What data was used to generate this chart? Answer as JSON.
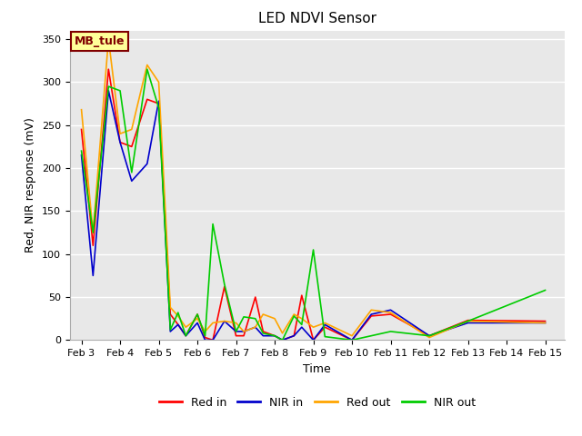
{
  "title": "LED NDVI Sensor",
  "xlabel": "Time",
  "ylabel": "Red, NIR response (mV)",
  "annotation": "MB_tule",
  "ylim": [
    0,
    360
  ],
  "legend": [
    "Red in",
    "NIR in",
    "Red out",
    "NIR out"
  ],
  "colors": {
    "red_in": "#ff0000",
    "nir_in": "#0000cc",
    "red_out": "#ffa500",
    "nir_out": "#00cc00"
  },
  "x_labels": [
    "Feb 3",
    "Feb 4",
    "Feb 5",
    "Feb 6",
    "Feb 7",
    "Feb 8",
    "Feb 9",
    "Feb 10",
    "Feb 11",
    "Feb 12",
    "Feb 13",
    "Feb 14",
    "Feb 15"
  ],
  "x_ticks": [
    0,
    1,
    2,
    3,
    4,
    5,
    6,
    7,
    8,
    9,
    10,
    11,
    12
  ],
  "red_in": [
    245,
    110,
    315,
    230,
    225,
    280,
    275,
    30,
    18,
    5,
    30,
    3,
    0,
    62,
    5,
    5,
    50,
    10,
    5,
    0,
    5,
    52,
    0,
    15,
    0,
    28,
    30,
    5,
    23,
    22
  ],
  "nir_in": [
    215,
    75,
    290,
    230,
    185,
    205,
    278,
    10,
    18,
    5,
    20,
    0,
    0,
    22,
    10,
    10,
    15,
    5,
    5,
    0,
    5,
    15,
    0,
    18,
    0,
    30,
    35,
    5,
    20,
    20
  ],
  "red_out": [
    268,
    125,
    350,
    240,
    245,
    320,
    300,
    38,
    28,
    15,
    25,
    10,
    20,
    22,
    20,
    10,
    15,
    30,
    25,
    8,
    30,
    25,
    15,
    20,
    5,
    35,
    32,
    3,
    22,
    20
  ],
  "nir_out": [
    220,
    125,
    295,
    290,
    195,
    315,
    270,
    12,
    32,
    5,
    30,
    5,
    135,
    65,
    10,
    27,
    25,
    8,
    5,
    0,
    28,
    18,
    105,
    4,
    0,
    5,
    10,
    5,
    22,
    58
  ],
  "x_vals": [
    0.0,
    0.3,
    0.7,
    1.0,
    1.3,
    1.7,
    2.0,
    2.3,
    2.5,
    2.7,
    3.0,
    3.2,
    3.4,
    3.7,
    4.0,
    4.2,
    4.5,
    4.7,
    5.0,
    5.2,
    5.5,
    5.7,
    6.0,
    6.3,
    7.0,
    7.5,
    8.0,
    9.0,
    10.0,
    12.0
  ],
  "bg_color": "#e8e8e8",
  "grid_color": "#ffffff",
  "annotation_bg": "#ffff99",
  "annotation_fg": "#800000",
  "fig_width": 6.4,
  "fig_height": 4.8,
  "dpi": 100
}
